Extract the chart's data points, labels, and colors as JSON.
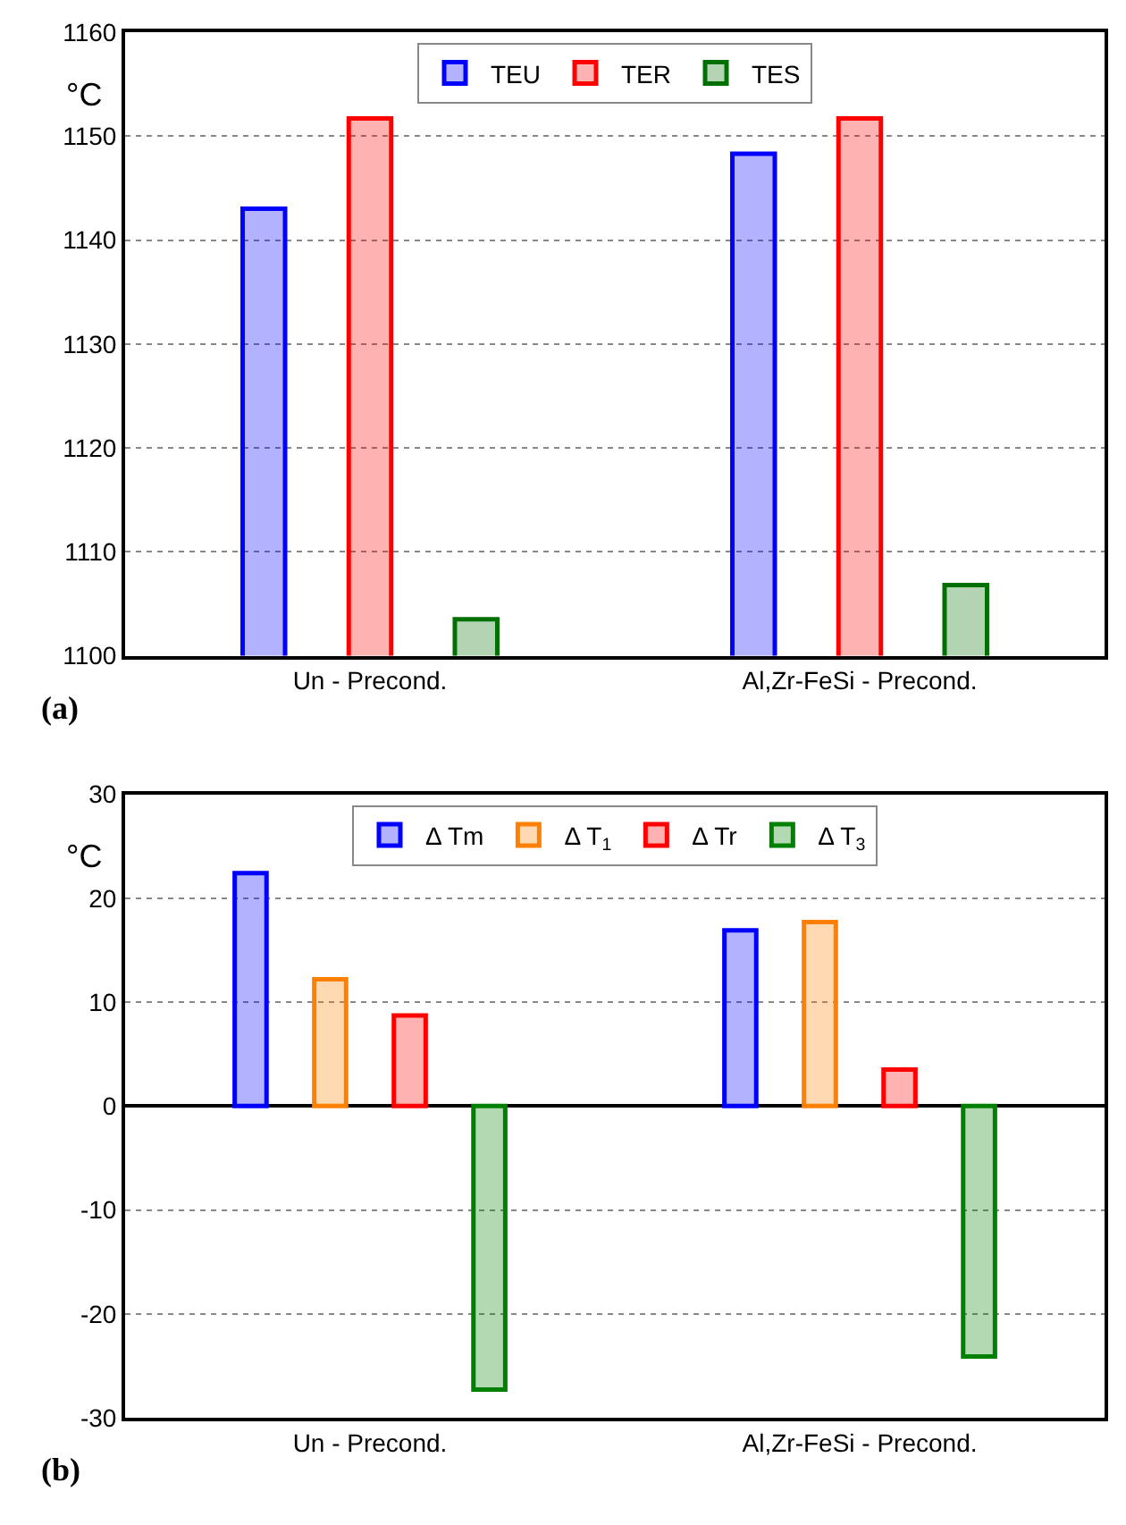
{
  "chart_data": [
    {
      "type": "bar",
      "ylabel": "°C",
      "categories": [
        "Un - Precond.",
        "Al,Zr-FeSi - Precond."
      ],
      "ylim": [
        1100,
        1160
      ],
      "yticks": [
        1100,
        1110,
        1120,
        1130,
        1140,
        1150,
        1160
      ],
      "grid": "y",
      "legend": "top",
      "annotations": [
        "(a)"
      ],
      "series": [
        {
          "name": "TEU",
          "color": "#0000ff",
          "values": [
            1143,
            1148.3
          ]
        },
        {
          "name": "TER",
          "color": "#ff0000",
          "values": [
            1151.7,
            1151.7
          ]
        },
        {
          "name": "TES",
          "color": "#007000",
          "values": [
            1103.5,
            1106.8
          ]
        }
      ]
    },
    {
      "type": "bar",
      "ylabel": "°C",
      "categories": [
        "Un - Precond.",
        "Al,Zr-FeSi - Precond."
      ],
      "ylim": [
        -30,
        30
      ],
      "yticks": [
        -30,
        -20,
        -10,
        0,
        10,
        20,
        30
      ],
      "grid": "y",
      "legend": "top",
      "annotations": [
        "(b)"
      ],
      "series": [
        {
          "name": "Δ Tm",
          "color": "#0000ff",
          "values": [
            22.4,
            16.9
          ]
        },
        {
          "name": "Δ T$_{1}$",
          "color": "#ff8000",
          "values": [
            12.2,
            17.7
          ]
        },
        {
          "name": "Δ Tr",
          "color": "#ff0000",
          "values": [
            8.7,
            3.5
          ]
        },
        {
          "name": "Δ T$_{3}$",
          "color": "#008000",
          "values": [
            -27.3,
            -24.1
          ]
        }
      ]
    }
  ]
}
